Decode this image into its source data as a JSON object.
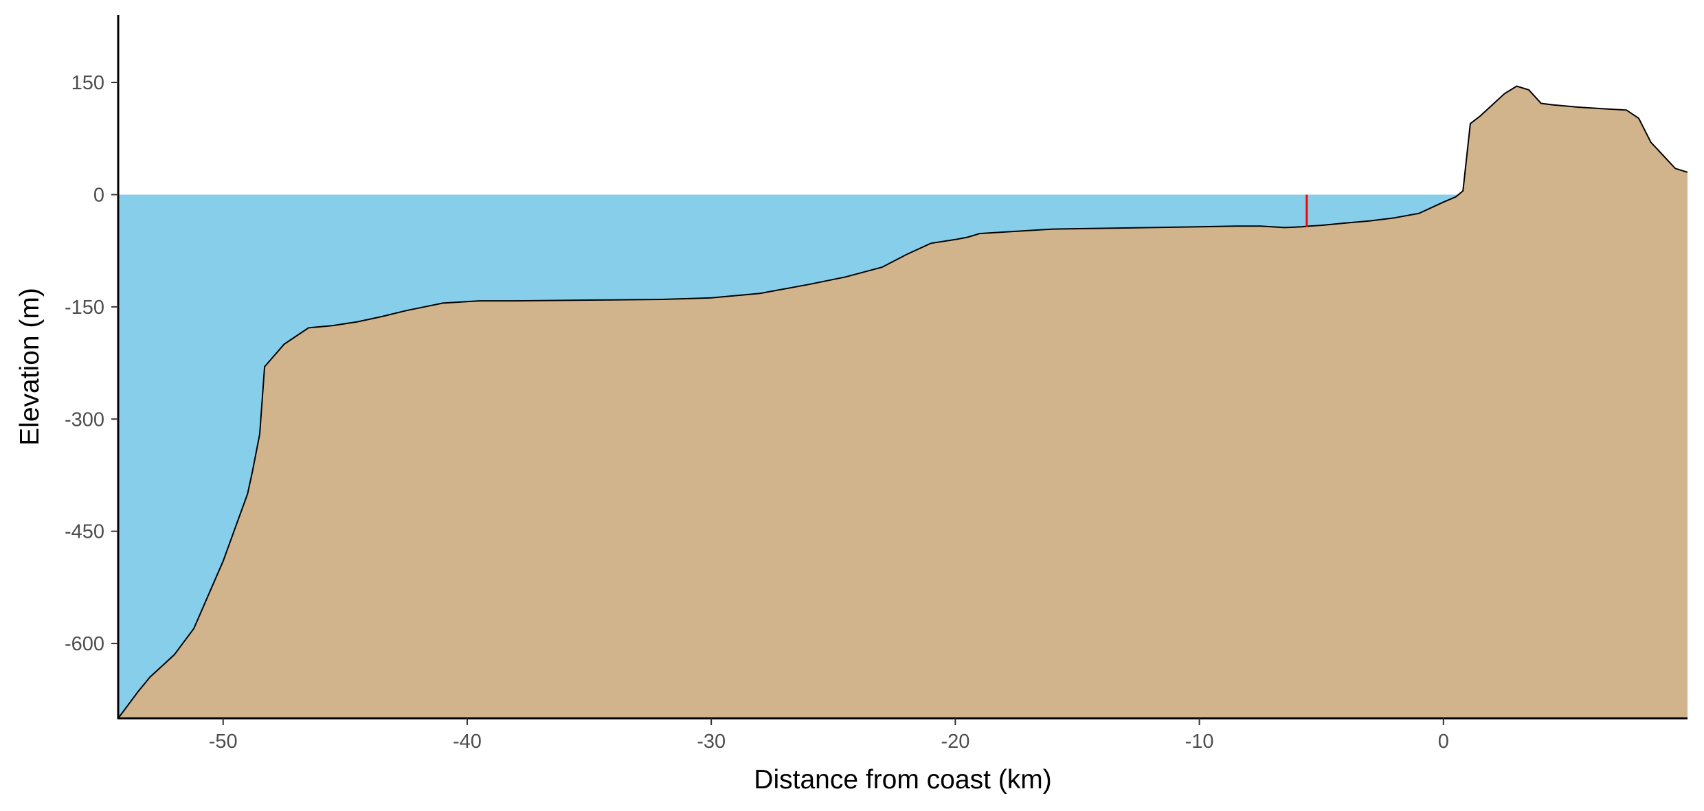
{
  "chart_data": {
    "type": "area",
    "title": "",
    "xlabel": "Distance from coast (km)",
    "ylabel": "Elevation (m)",
    "xlim": [
      -54.3,
      10
    ],
    "ylim": [
      -700,
      240
    ],
    "x_ticks": [
      -50,
      -40,
      -30,
      -20,
      -10,
      0
    ],
    "y_ticks": [
      150,
      0,
      -150,
      -300,
      -450,
      -600
    ],
    "grid": false,
    "legend": "none",
    "water_level": 0,
    "colors": {
      "water": "#87CEEB",
      "terrain": "#D2B48C",
      "outline": "#000000",
      "marker": "#FF0000"
    },
    "marker": {
      "x": -5.6,
      "y_bottom": -43,
      "y_top": 0
    },
    "series": [
      {
        "x": [
          -54.3,
          -53.5,
          -53,
          -52,
          -51.2,
          -50.8,
          -50,
          -49.5,
          -49,
          -48.8,
          -48.5,
          -48.3,
          -47.5,
          -46.5,
          -45.5,
          -44.5,
          -43.5,
          -42.5,
          -41,
          -39.5,
          -38,
          -35,
          -32,
          -30,
          -28,
          -26,
          -24.5,
          -23,
          -22,
          -21,
          -20,
          -19.5,
          -19,
          -18,
          -17,
          -16,
          -14,
          -12,
          -10,
          -8.5,
          -7.5,
          -6.5,
          -5.8,
          -5.5,
          -5,
          -4,
          -3,
          -2,
          -1,
          0,
          0.5,
          0.8,
          1.1,
          1.5,
          2.5,
          3.0,
          3.5,
          4.0,
          4.5,
          5.5,
          6.5,
          7.5,
          8.0,
          8.5,
          9.5,
          10
        ],
        "y": [
          -700,
          -665,
          -645,
          -615,
          -580,
          -550,
          -490,
          -445,
          -400,
          -370,
          -320,
          -230,
          -200,
          -178,
          -175,
          -170,
          -163,
          -155,
          -145,
          -142,
          -142,
          -141,
          -140,
          -138,
          -132,
          -120,
          -110,
          -97,
          -80,
          -65,
          -60,
          -57,
          -52,
          -50,
          -48,
          -46,
          -45,
          -44,
          -43,
          -42,
          -42,
          -44,
          -43,
          -42,
          -41,
          -38,
          -35,
          -31,
          -25,
          -10,
          -3,
          5,
          95,
          105,
          135,
          145,
          140,
          122,
          120,
          117,
          115,
          113,
          102,
          70,
          35,
          30
        ]
      }
    ]
  }
}
